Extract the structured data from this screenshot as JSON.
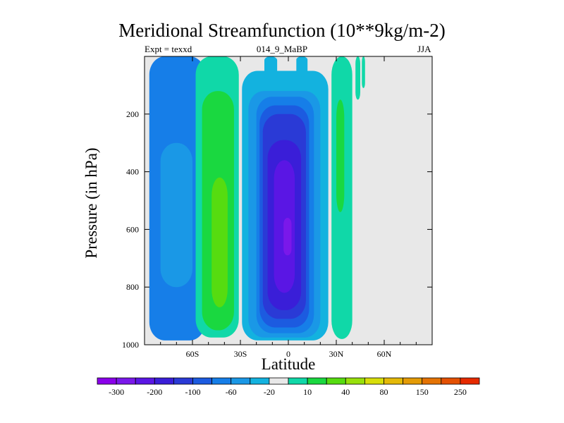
{
  "chart_data": {
    "type": "heatmap",
    "title": "Meridional Streamfunction (10**9kg/m-2)",
    "subtitle_left": "Expt = texxd",
    "subtitle_center": "014_9_MaBP",
    "subtitle_right": "JJA",
    "xlabel": "Latitude",
    "ylabel": "Pressure (in hPa)",
    "xlim": [
      -90,
      90
    ],
    "ylim": [
      1000,
      0
    ],
    "x_ticks": [
      {
        "value": -60,
        "label": "60S"
      },
      {
        "value": -30,
        "label": "30S"
      },
      {
        "value": 0,
        "label": "0"
      },
      {
        "value": 30,
        "label": "30N"
      },
      {
        "value": 60,
        "label": "60N"
      }
    ],
    "y_ticks": [
      {
        "value": 200,
        "label": "200"
      },
      {
        "value": 400,
        "label": "400"
      },
      {
        "value": 600,
        "label": "600"
      },
      {
        "value": 800,
        "label": "800"
      },
      {
        "value": 1000,
        "label": "1000"
      }
    ],
    "colorbar": {
      "colors": [
        "#8a00ea",
        "#7a18ea",
        "#5a16e4",
        "#3a1ed8",
        "#2a3ad6",
        "#1c5be0",
        "#167ee8",
        "#1a98e6",
        "#13b2df",
        "#e8e8e8",
        "#10d8a8",
        "#1ad840",
        "#56dc10",
        "#98e00c",
        "#d8de0a",
        "#e4b908",
        "#e49b06",
        "#e47304",
        "#e45002",
        "#e62a00"
      ],
      "labels": [
        {
          "boundary": 1,
          "text": "-300"
        },
        {
          "boundary": 3,
          "text": "-200"
        },
        {
          "boundary": 5,
          "text": "-100"
        },
        {
          "boundary": 7,
          "text": "-60"
        },
        {
          "boundary": 9,
          "text": "-20"
        },
        {
          "boundary": 11,
          "text": "10"
        },
        {
          "boundary": 13,
          "text": "40"
        },
        {
          "boundary": 15,
          "text": "80"
        },
        {
          "boundary": 17,
          "text": "150"
        },
        {
          "boundary": 19,
          "text": "250"
        }
      ]
    },
    "cells": [
      {
        "name": "sh-polar-cell",
        "lat": [
          -87,
          -52
        ],
        "p": [
          0,
          985
        ],
        "color": "#167ee8"
      },
      {
        "name": "sh-polar-cell-core",
        "lat": [
          -80,
          -60
        ],
        "p": [
          300,
          800
        ],
        "color": "#1a98e6"
      },
      {
        "name": "sh-ferrel-green",
        "lat": [
          -58,
          -31
        ],
        "p": [
          0,
          975
        ],
        "color": "#10d8a8"
      },
      {
        "name": "sh-ferrel-mid",
        "lat": [
          -54,
          -34
        ],
        "p": [
          120,
          950
        ],
        "color": "#1ad840"
      },
      {
        "name": "sh-ferrel-core",
        "lat": [
          -48,
          -38
        ],
        "p": [
          420,
          870
        ],
        "color": "#56dc10"
      },
      {
        "name": "hadley-outer",
        "lat": [
          -29,
          25
        ],
        "p": [
          50,
          985
        ],
        "color": "#13b2df"
      },
      {
        "name": "hadley-l2",
        "lat": [
          -25,
          20
        ],
        "p": [
          120,
          975
        ],
        "color": "#1a98e6"
      },
      {
        "name": "hadley-l3",
        "lat": [
          -20,
          16
        ],
        "p": [
          140,
          960
        ],
        "color": "#167ee8"
      },
      {
        "name": "hadley-l4",
        "lat": [
          -18,
          13
        ],
        "p": [
          170,
          940
        ],
        "color": "#1c5be0"
      },
      {
        "name": "hadley-l5",
        "lat": [
          -16,
          11
        ],
        "p": [
          200,
          910
        ],
        "color": "#2a3ad6"
      },
      {
        "name": "hadley-l6",
        "lat": [
          -13,
          8
        ],
        "p": [
          290,
          880
        ],
        "color": "#3a1ed8"
      },
      {
        "name": "hadley-core",
        "lat": [
          -9,
          4
        ],
        "p": [
          360,
          820
        ],
        "color": "#5a16e4"
      },
      {
        "name": "hadley-peak",
        "lat": [
          -3,
          2
        ],
        "p": [
          560,
          690
        ],
        "color": "#7a18ea"
      },
      {
        "name": "nh-cell-green",
        "lat": [
          27,
          40
        ],
        "p": [
          0,
          980
        ],
        "color": "#10d8a8"
      },
      {
        "name": "nh-cell-core",
        "lat": [
          30,
          35
        ],
        "p": [
          150,
          540
        ],
        "color": "#1ad840"
      },
      {
        "name": "nh-thin-green",
        "lat": [
          42,
          45
        ],
        "p": [
          0,
          150
        ],
        "color": "#10d8a8"
      },
      {
        "name": "nh-thin-green-2",
        "lat": [
          46,
          48
        ],
        "p": [
          0,
          110
        ],
        "color": "#10d8a8"
      },
      {
        "name": "top-blue-a",
        "lat": [
          -15,
          -7
        ],
        "p": [
          0,
          80
        ],
        "color": "#13b2df"
      },
      {
        "name": "top-blue-b",
        "lat": [
          5,
          12
        ],
        "p": [
          0,
          70
        ],
        "color": "#13b2df"
      }
    ]
  }
}
